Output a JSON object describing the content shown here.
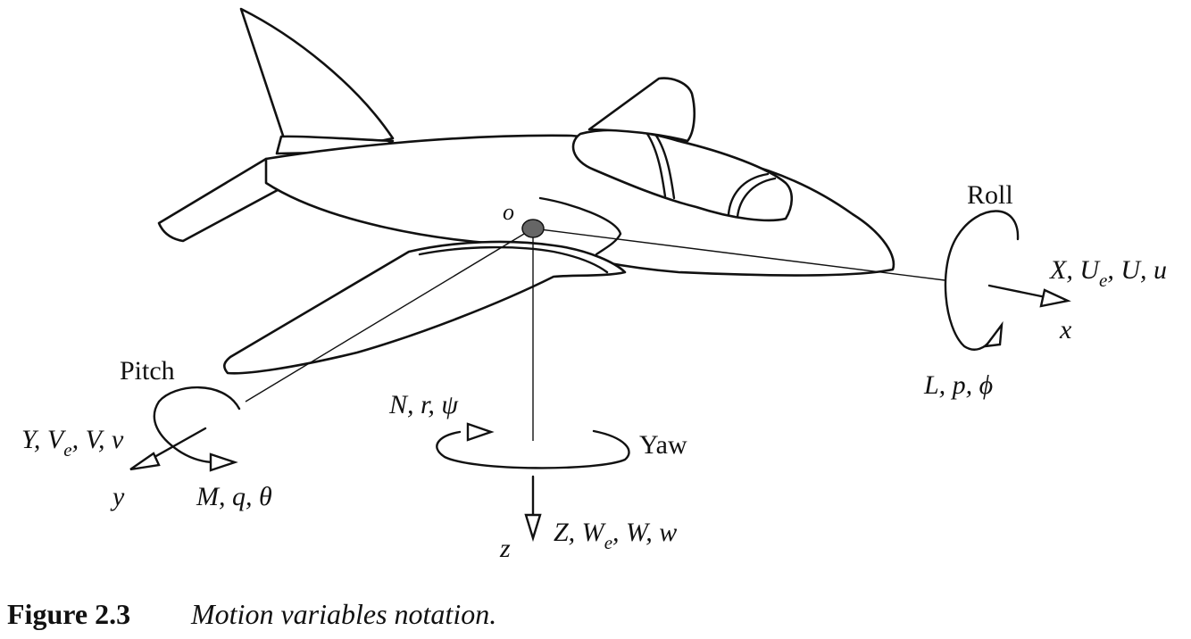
{
  "labels": {
    "origin": "o",
    "roll": "Roll",
    "pitch": "Pitch",
    "yaw": "Yaw",
    "x_axis": "x",
    "y_axis": "y",
    "z_axis": "z",
    "x_vars": {
      "main": "X, U",
      "sub": "e",
      "rest": ", U, u"
    },
    "y_vars": {
      "main": "Y, V",
      "sub": "e",
      "rest": ", V, v"
    },
    "z_vars": {
      "main": "Z, W",
      "sub": "e",
      "rest": ", W, w"
    },
    "roll_vars": "L, p, ϕ",
    "pitch_vars": "M, q, θ",
    "yaw_vars": "N, r, ψ"
  },
  "caption": {
    "number": "Figure 2.3",
    "text": "Motion variables notation."
  },
  "colors": {
    "ink": "#111111",
    "cg_fill": "#666666",
    "background": "#ffffff"
  }
}
